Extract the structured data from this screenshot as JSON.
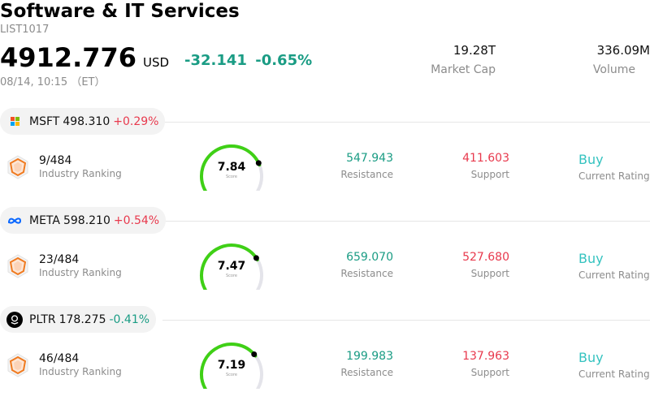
{
  "header": {
    "title": "Software & IT Services",
    "code": "LIST1017",
    "price": "4912.776",
    "currency": "USD",
    "change": "-32.141",
    "change_pct": "-0.65%",
    "time": "08/14, 10:15 （ET）",
    "market_cap_value": "19.28T",
    "market_cap_label": "Market Cap",
    "volume_value": "336.09M",
    "volume_label": "Volume",
    "colors": {
      "down": "#1a9c84",
      "up": "#e8394d",
      "rating": "#35c3c0",
      "gauge": "#3fd016"
    }
  },
  "stocks": [
    {
      "ticker": "MSFT",
      "price": "498.310",
      "change_pct": "+0.29%",
      "direction": "up",
      "logo": "microsoft-logo",
      "rank": "9/484",
      "rank_label": "Industry Ranking",
      "score": "7.84",
      "score_value": 7.84,
      "score_label": "Score",
      "resistance": "547.943",
      "resistance_label": "Resistance",
      "support": "411.603",
      "support_label": "Support",
      "rating": "Buy",
      "rating_label": "Current Rating"
    },
    {
      "ticker": "META",
      "price": "598.210",
      "change_pct": "+0.54%",
      "direction": "up",
      "logo": "meta-logo",
      "rank": "23/484",
      "rank_label": "Industry Ranking",
      "score": "7.47",
      "score_value": 7.47,
      "score_label": "Score",
      "resistance": "659.070",
      "resistance_label": "Resistance",
      "support": "527.680",
      "support_label": "Support",
      "rating": "Buy",
      "rating_label": "Current Rating"
    },
    {
      "ticker": "PLTR",
      "price": "178.275",
      "change_pct": "-0.41%",
      "direction": "down",
      "logo": "palantir-logo",
      "rank": "46/484",
      "rank_label": "Industry Ranking",
      "score": "7.19",
      "score_value": 7.19,
      "score_label": "Score",
      "resistance": "199.983",
      "resistance_label": "Resistance",
      "support": "137.963",
      "support_label": "Support",
      "rating": "Buy",
      "rating_label": "Current Rating"
    }
  ]
}
